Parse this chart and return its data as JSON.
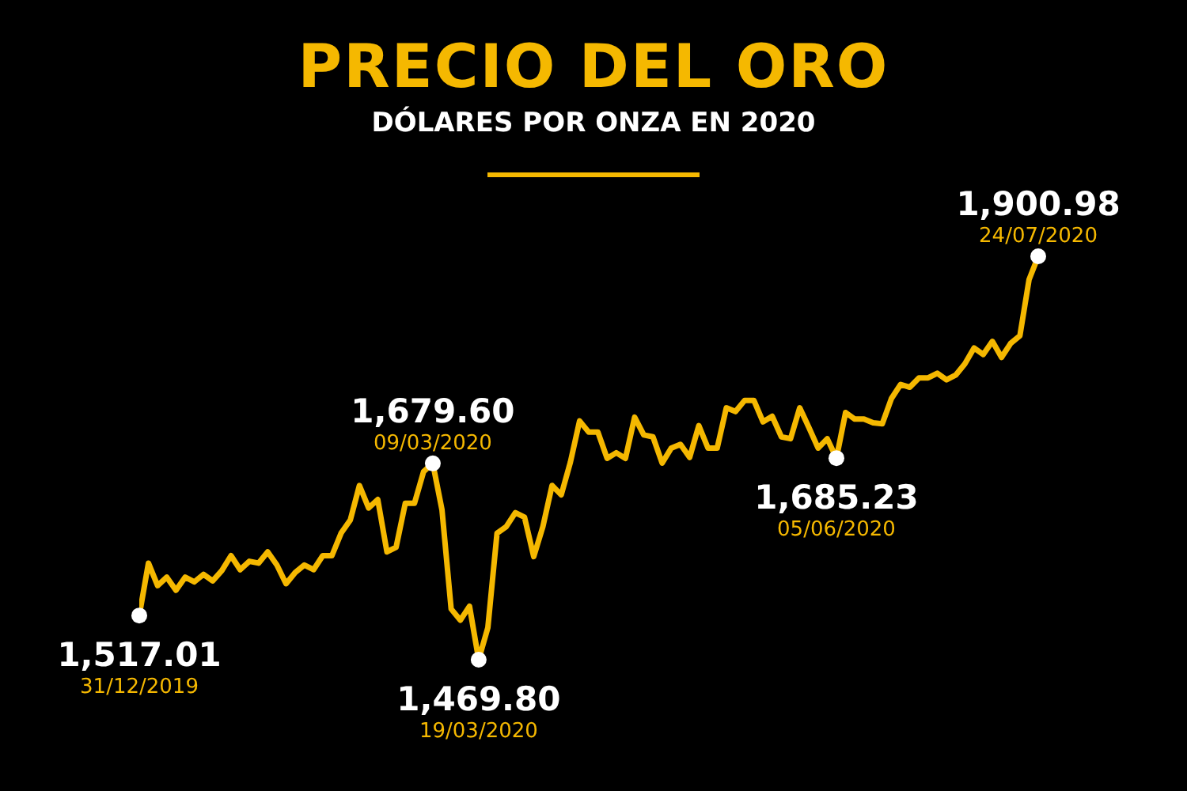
{
  "chart_data": {
    "type": "line",
    "title": "PRECIO DEL ORO",
    "subtitle": "DÓLARES POR ONZA EN 2020",
    "color": "#f5b800",
    "marker": "none",
    "line_style": "solid",
    "legend": false,
    "tick_labels": false,
    "categories": [
      null,
      null,
      null,
      null,
      null,
      null,
      null,
      null,
      null,
      null,
      null,
      null,
      null,
      null,
      null,
      null,
      null,
      null,
      null,
      null,
      null,
      null,
      null,
      null,
      null,
      null,
      null,
      null,
      null,
      null,
      null,
      null,
      null,
      null,
      null,
      null,
      null,
      null,
      null,
      null,
      null,
      null,
      null,
      null,
      null,
      null,
      null,
      null,
      null,
      null,
      null,
      null,
      null,
      null,
      null,
      null,
      null,
      null,
      null,
      null,
      null,
      null,
      null,
      null,
      null,
      null,
      null,
      null,
      null,
      null,
      null,
      null,
      null,
      null,
      null,
      null,
      null,
      null,
      null,
      null,
      null,
      null,
      null,
      null,
      null,
      null,
      null,
      null,
      null,
      null,
      null,
      null,
      null,
      null,
      null,
      null,
      null,
      null,
      null
    ],
    "values": [
      1517.01,
      1573,
      1549,
      1558,
      1544,
      1558,
      1553,
      1561,
      1554,
      1565,
      1581,
      1566,
      1575,
      1573,
      1585,
      1571,
      1551,
      1563,
      1571,
      1566,
      1581,
      1581,
      1605,
      1619,
      1656,
      1632,
      1641,
      1585,
      1590,
      1637,
      1637,
      1671,
      1679.6,
      1630,
      1524,
      1512,
      1527,
      1469.8,
      1504,
      1605,
      1612,
      1627,
      1622,
      1580,
      1612,
      1656,
      1646,
      1681,
      1725,
      1713,
      1713,
      1685,
      1691,
      1685,
      1729,
      1710,
      1708,
      1680,
      1696,
      1700,
      1686,
      1720,
      1696,
      1696,
      1739,
      1735,
      1747,
      1747,
      1724,
      1730,
      1708,
      1706,
      1739,
      1718,
      1696,
      1706,
      1685.23,
      1734,
      1727,
      1727,
      1723,
      1722,
      1749,
      1764,
      1761,
      1771,
      1771,
      1776,
      1769,
      1774,
      1786,
      1803,
      1796,
      1810,
      1793,
      1808,
      1816,
      1876,
      1900.98
    ],
    "value_labels": [
      "1,517.01",
      null,
      null,
      null,
      null,
      null,
      null,
      null,
      null,
      null,
      null,
      null,
      null,
      null,
      null,
      null,
      null,
      null,
      null,
      null,
      null,
      null,
      null,
      null,
      null,
      null,
      null,
      null,
      null,
      null,
      null,
      null,
      "1,679.60",
      null,
      null,
      null,
      null,
      "1,469.80",
      null,
      null,
      null,
      null,
      null,
      null,
      null,
      null,
      null,
      null,
      null,
      null,
      null,
      null,
      null,
      null,
      null,
      null,
      null,
      null,
      null,
      null,
      null,
      null,
      null,
      null,
      null,
      null,
      null,
      null,
      null,
      null,
      null,
      null,
      null,
      null,
      null,
      null,
      "1,685.23",
      null,
      null,
      null,
      null,
      null,
      null,
      null,
      null,
      null,
      null,
      null,
      null,
      null,
      null,
      null,
      null,
      null,
      null,
      null,
      null,
      null,
      "1,900.98"
    ],
    "annotations": [
      "31/12/2019",
      "09/03/2020",
      "19/03/2020",
      "05/06/2020",
      "24/07/2020"
    ]
  }
}
